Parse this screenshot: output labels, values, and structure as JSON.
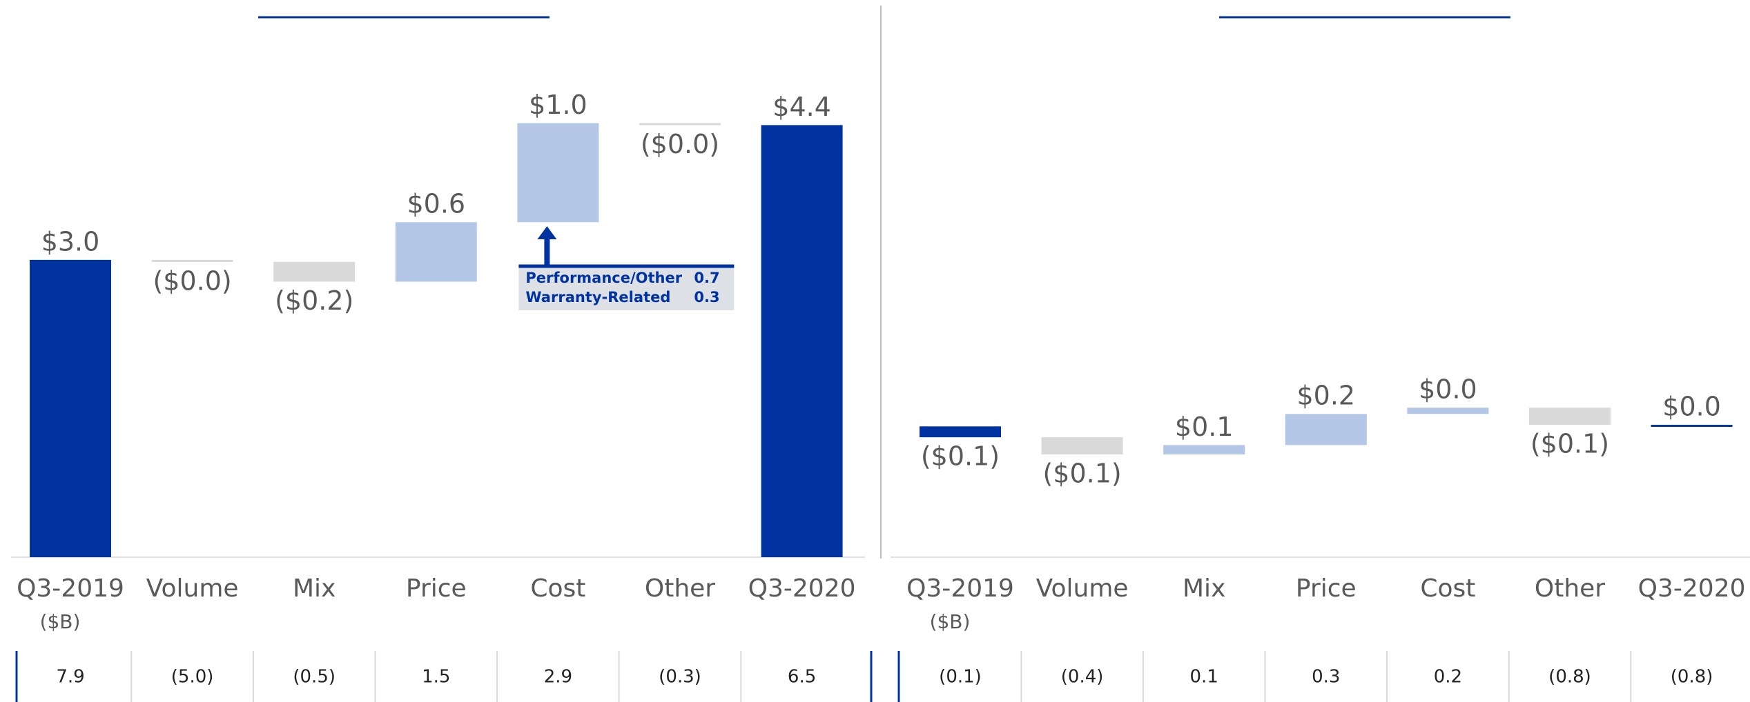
{
  "chart_data": [
    {
      "type": "waterfall",
      "categories": [
        "Q3-2019",
        "Volume",
        "Mix",
        "Price",
        "Cost",
        "Other",
        "Q3-2020"
      ],
      "unit_note": "($B)",
      "values": [
        3.0,
        -0.02,
        -0.2,
        0.6,
        1.0,
        -0.02,
        4.36
      ],
      "value_labels": [
        "$3.0",
        "($0.0)",
        "($0.2)",
        "$0.6",
        "$1.0",
        "($0.0)",
        "$4.4"
      ],
      "totals": [
        true,
        false,
        false,
        false,
        false,
        false,
        true
      ],
      "total_color": "#0033a0",
      "increase_color": "#b4c7e7",
      "decrease_color": "#d9d9d9",
      "ylim": [
        0,
        5.17
      ],
      "callout": {
        "category": 4,
        "rows": [
          {
            "label": "Performance/Other",
            "value": 0.7
          },
          {
            "label": "Warranty-Related",
            "value": 0.3
          }
        ]
      },
      "footer": [
        "7.9",
        "(5.0)",
        "(0.5)",
        "1.5",
        "2.9",
        "(0.3)",
        "6.5"
      ]
    },
    {
      "type": "waterfall",
      "categories": [
        "Q3-2019",
        "Volume",
        "Mix",
        "Price",
        "Cost",
        "Other",
        "Q3-2020"
      ],
      "unit_note": "($B)",
      "values": [
        -0.07,
        -0.11,
        0.06,
        0.2,
        0.04,
        -0.11,
        0.01
      ],
      "value_labels": [
        "($0.1)",
        "($0.1)",
        "$0.1",
        "$0.2",
        "$0.0",
        "($0.1)",
        "$0.0"
      ],
      "totals": [
        true,
        false,
        false,
        false,
        false,
        false,
        true
      ],
      "total_color": "#0033a0",
      "increase_color": "#b4c7e7",
      "decrease_color": "#d9d9d9",
      "ylim": [
        -0.84,
        2.45
      ],
      "footer": [
        "(0.1)",
        "(0.4)",
        "0.1",
        "0.3",
        "0.2",
        "(0.8)",
        "(0.8)"
      ]
    }
  ]
}
